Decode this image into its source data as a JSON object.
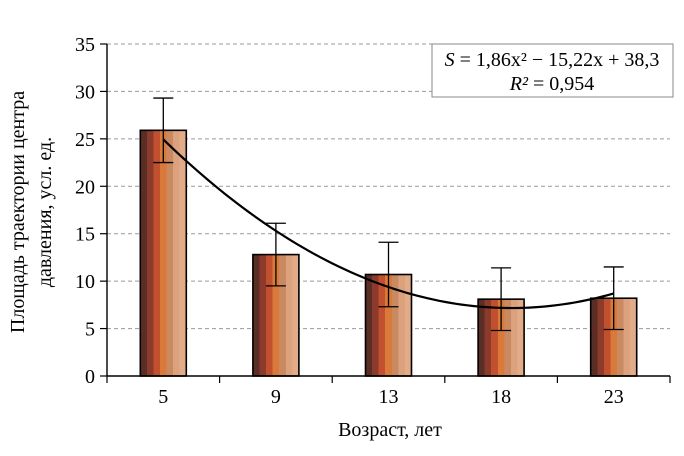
{
  "chart_data": {
    "type": "bar",
    "categories": [
      "5",
      "9",
      "13",
      "18",
      "23"
    ],
    "values": [
      25.9,
      12.8,
      10.7,
      8.1,
      8.2
    ],
    "errors": [
      3.4,
      3.3,
      3.4,
      3.3,
      3.3
    ],
    "ylim": [
      0,
      35
    ],
    "yticks": [
      "0",
      "5",
      "10",
      "15",
      "20",
      "25",
      "30",
      "35"
    ],
    "xlabel": "Возраст, лет",
    "ylabel_line1": "Площадь траектории центра",
    "ylabel_line2": "давления, усл. ед.",
    "grid": true,
    "trendline": {
      "type": "polynomial",
      "coefficients": [
        1.86,
        -15.22,
        38.3
      ],
      "equation_lhs": "S",
      "equation_rhs": "1,86x² − 15,22x + 38,3",
      "r2_label": "R²",
      "r2_value": "0,954",
      "legend_position": "top-right"
    },
    "bar_colors": [
      "#5a2e24",
      "#8b3a2c",
      "#c0502e",
      "#d97a3a",
      "#c98a62",
      "#dca27e",
      "#e2ac88"
    ]
  }
}
